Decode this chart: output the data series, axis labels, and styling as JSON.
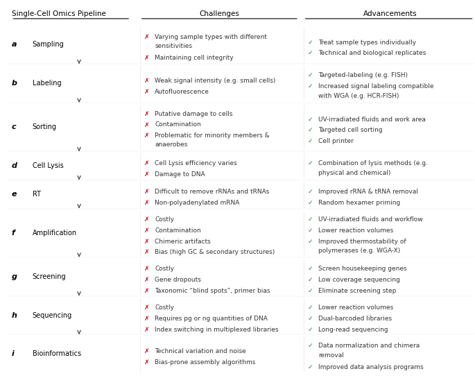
{
  "title_left": "Single-Cell Omics Pipeline",
  "title_mid": "Challenges",
  "title_right": "Advancements",
  "bg_color": "#ffffff",
  "rows": [
    {
      "label": "a",
      "step": "Sampling",
      "challenges": [
        "Varying sample types with different\nsensitivities",
        "Maintaining cell integrity"
      ],
      "advancements": [
        "Treat sample types individually",
        "Technical and biological replicates"
      ],
      "arrow_below": true
    },
    {
      "label": "b",
      "step": "Labeling",
      "challenges": [
        "Weak signal intensity (e.g. small cells)",
        "Autofluorescence"
      ],
      "advancements": [
        "Targeted-labeling (e.g. FISH)",
        "Increased signal labeling compatible\nwith WGA (e.g. HCR-FISH)"
      ],
      "arrow_below": true
    },
    {
      "label": "c",
      "step": "Sorting",
      "challenges": [
        "Putative damage to cells",
        "Contamination",
        "Problematic for minority members &\nanaerobes"
      ],
      "advancements": [
        "UV-irradiated fluids and work area",
        "Targeted cell sorting",
        "Cell printer"
      ],
      "arrow_below": true
    },
    {
      "label": "d",
      "step": "Cell Lysis",
      "challenges": [
        "Cell Lysis efficiency varies",
        "Damage to DNA"
      ],
      "advancements": [
        "Combination of lysis methods (e.g.\nphysical and chemical)"
      ],
      "arrow_below": true
    },
    {
      "label": "e",
      "step": "RT",
      "challenges": [
        "Difficult to remove rRNAs and tRNAs",
        "Non-polyadenylated mRNA"
      ],
      "advancements": [
        "Improved rRNA & tRNA removal",
        "Random hexamer priming"
      ],
      "arrow_below": true
    },
    {
      "label": "f",
      "step": "Amplification",
      "challenges": [
        "Costly",
        "Contamination",
        "Chimeric artifacts",
        "Bias (high GC & secondary structures)"
      ],
      "advancements": [
        "UV-irradiated fluids and workflow",
        "Lower reaction volumes",
        "Improved thermostability of\npolymerases (e.g. WGA-X)"
      ],
      "arrow_below": true
    },
    {
      "label": "g",
      "step": "Screening",
      "challenges": [
        "Costly",
        "Gene dropouts",
        "Taxonomic “blind spots”, primer bias"
      ],
      "advancements": [
        "Screen housekeeping genes",
        "Low coverage sequencing",
        "Eliminate screening step"
      ],
      "arrow_below": true
    },
    {
      "label": "h",
      "step": "Sequencing",
      "challenges": [
        "Costly",
        "Requires pg or ng quantities of DNA",
        "Index switching in multiplexed libraries"
      ],
      "advancements": [
        "Lower reaction volumes",
        "Dual-barcoded libraries",
        "Long-read sequencing"
      ],
      "arrow_below": true
    },
    {
      "label": "i",
      "step": "Bioinformatics",
      "challenges": [
        "Technical variation and noise",
        "Bias-prone assembly algorithms"
      ],
      "advancements": [
        "Data normalization and chimera\nremoval",
        "Improved data analysis programs"
      ],
      "arrow_below": false
    }
  ],
  "challenge_color": "#cc0000",
  "advancement_color": "#2e7d32",
  "label_color": "#000000",
  "header_underline_color": "#000000",
  "cross_mark": "✗",
  "check_mark": "✓",
  "divider_color": "#cccccc"
}
